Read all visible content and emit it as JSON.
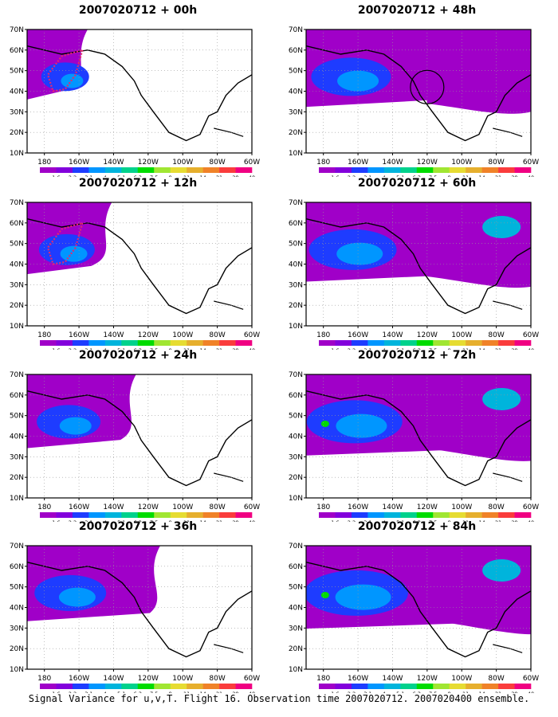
{
  "figure": {
    "caption": "Signal Variance for u,v,T. Flight 16. Observation time 2007020712. 2007020400 ensemble."
  },
  "axes": {
    "lat_labels": [
      "10N",
      "20N",
      "30N",
      "40N",
      "50N",
      "60N",
      "70N"
    ],
    "lon_labels": [
      "180",
      "160W",
      "140W",
      "120W",
      "100W",
      "80W",
      "60W"
    ]
  },
  "colorbar": {
    "levels": [
      "1.6",
      "2.2",
      "3.1",
      "4",
      "5.1",
      "6.3",
      "7.5",
      "9",
      "11",
      "14",
      "21",
      "29",
      "40"
    ],
    "colors": [
      "#a000c8",
      "#8200dc",
      "#1e3cff",
      "#0096ff",
      "#00b4dc",
      "#00d28c",
      "#00dc00",
      "#a0e632",
      "#e6dc32",
      "#e6af2d",
      "#f08228",
      "#fa3c3c",
      "#f00082"
    ]
  },
  "panels": [
    {
      "id": "p00",
      "title": "2007020712 + 00h",
      "col": 0,
      "row": 0,
      "spread": 0
    },
    {
      "id": "p12",
      "title": "2007020712 + 12h",
      "col": 0,
      "row": 1,
      "spread": 1
    },
    {
      "id": "p24",
      "title": "2007020712 + 24h",
      "col": 0,
      "row": 2,
      "spread": 2
    },
    {
      "id": "p36",
      "title": "2007020712 + 36h",
      "col": 0,
      "row": 3,
      "spread": 3
    },
    {
      "id": "p48",
      "title": "2007020712 + 48h",
      "col": 1,
      "row": 0,
      "spread": 4
    },
    {
      "id": "p60",
      "title": "2007020712 + 60h",
      "col": 1,
      "row": 1,
      "spread": 5
    },
    {
      "id": "p72",
      "title": "2007020712 + 72h",
      "col": 1,
      "row": 2,
      "spread": 6
    },
    {
      "id": "p84",
      "title": "2007020712 + 84h",
      "col": 1,
      "row": 3,
      "spread": 7
    }
  ]
}
